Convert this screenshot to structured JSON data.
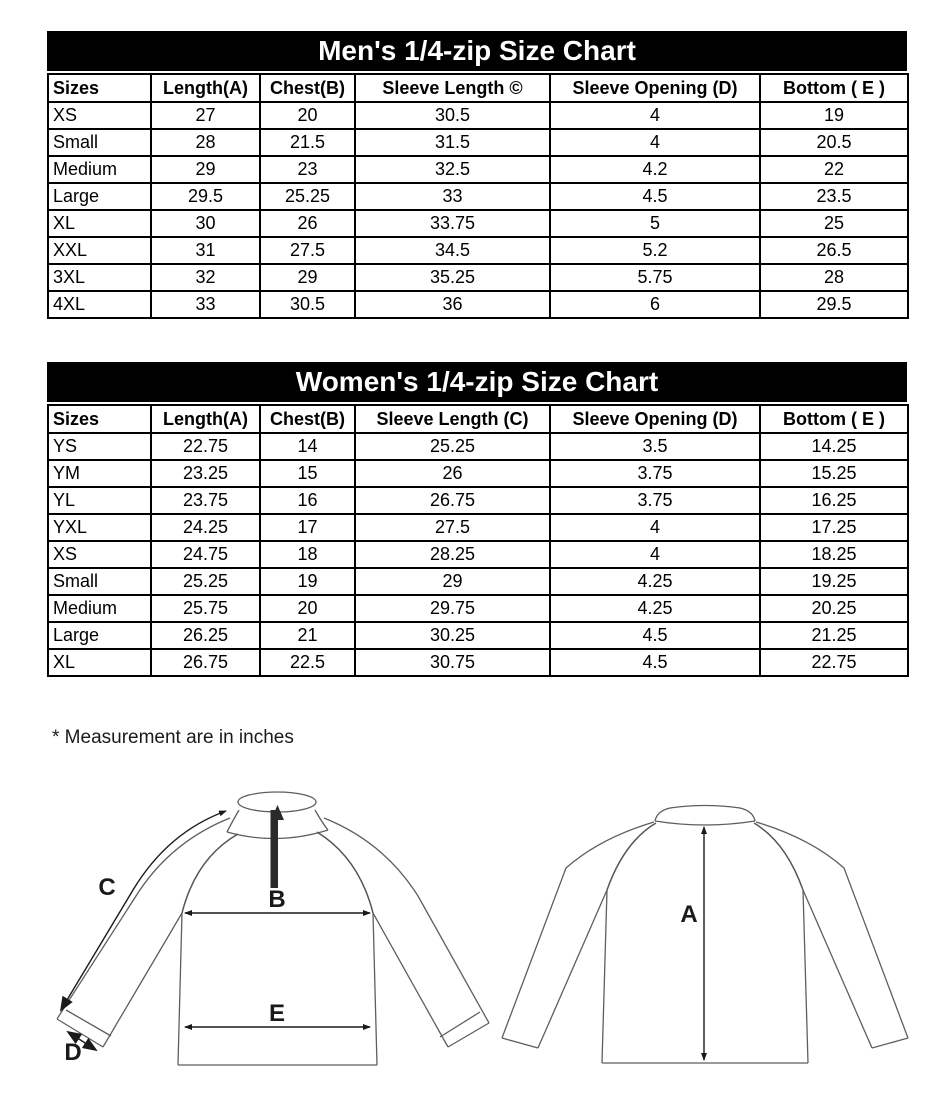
{
  "mens_chart": {
    "title": "Men's 1/4-zip Size Chart",
    "columns": [
      "Sizes",
      "Length(A)",
      "Chest(B)",
      "Sleeve Length ©",
      "Sleeve Opening (D)",
      "Bottom ( E )"
    ],
    "rows": [
      [
        "XS",
        "27",
        "20",
        "30.5",
        "4",
        "19"
      ],
      [
        "Small",
        "28",
        "21.5",
        "31.5",
        "4",
        "20.5"
      ],
      [
        "Medium",
        "29",
        "23",
        "32.5",
        "4.2",
        "22"
      ],
      [
        "Large",
        "29.5",
        "25.25",
        "33",
        "4.5",
        "23.5"
      ],
      [
        "XL",
        "30",
        "26",
        "33.75",
        "5",
        "25"
      ],
      [
        "XXL",
        "31",
        "27.5",
        "34.5",
        "5.2",
        "26.5"
      ],
      [
        "3XL",
        "32",
        "29",
        "35.25",
        "5.75",
        "28"
      ],
      [
        "4XL",
        "33",
        "30.5",
        "36",
        "6",
        "29.5"
      ]
    ]
  },
  "womens_chart": {
    "title": "Women's 1/4-zip Size Chart",
    "columns": [
      "Sizes",
      "Length(A)",
      "Chest(B)",
      "Sleeve Length (C)",
      "Sleeve Opening (D)",
      "Bottom ( E )"
    ],
    "rows": [
      [
        "YS",
        "22.75",
        "14",
        "25.25",
        "3.5",
        "14.25"
      ],
      [
        "YM",
        "23.25",
        "15",
        "26",
        "3.75",
        "15.25"
      ],
      [
        "YL",
        "23.75",
        "16",
        "26.75",
        "3.75",
        "16.25"
      ],
      [
        "YXL",
        "24.25",
        "17",
        "27.5",
        "4",
        "17.25"
      ],
      [
        "XS",
        "24.75",
        "18",
        "28.25",
        "4",
        "18.25"
      ],
      [
        "Small",
        "25.25",
        "19",
        "29",
        "4.25",
        "19.25"
      ],
      [
        "Medium",
        "25.75",
        "20",
        "29.75",
        "4.25",
        "20.25"
      ],
      [
        "Large",
        "26.25",
        "21",
        "30.25",
        "4.5",
        "21.25"
      ],
      [
        "XL",
        "26.75",
        "22.5",
        "30.75",
        "4.5",
        "22.75"
      ]
    ]
  },
  "note": "* Measurement are in inches",
  "diagram_labels": {
    "length": "A",
    "chest": "B",
    "sleeve_length": "C",
    "sleeve_opening": "D",
    "bottom": "E"
  },
  "colors": {
    "title_bg": "#000000",
    "title_text": "#ffffff",
    "table_border": "#000000",
    "body_text": "#000000",
    "diagram_outline": "#5e5e5e"
  }
}
